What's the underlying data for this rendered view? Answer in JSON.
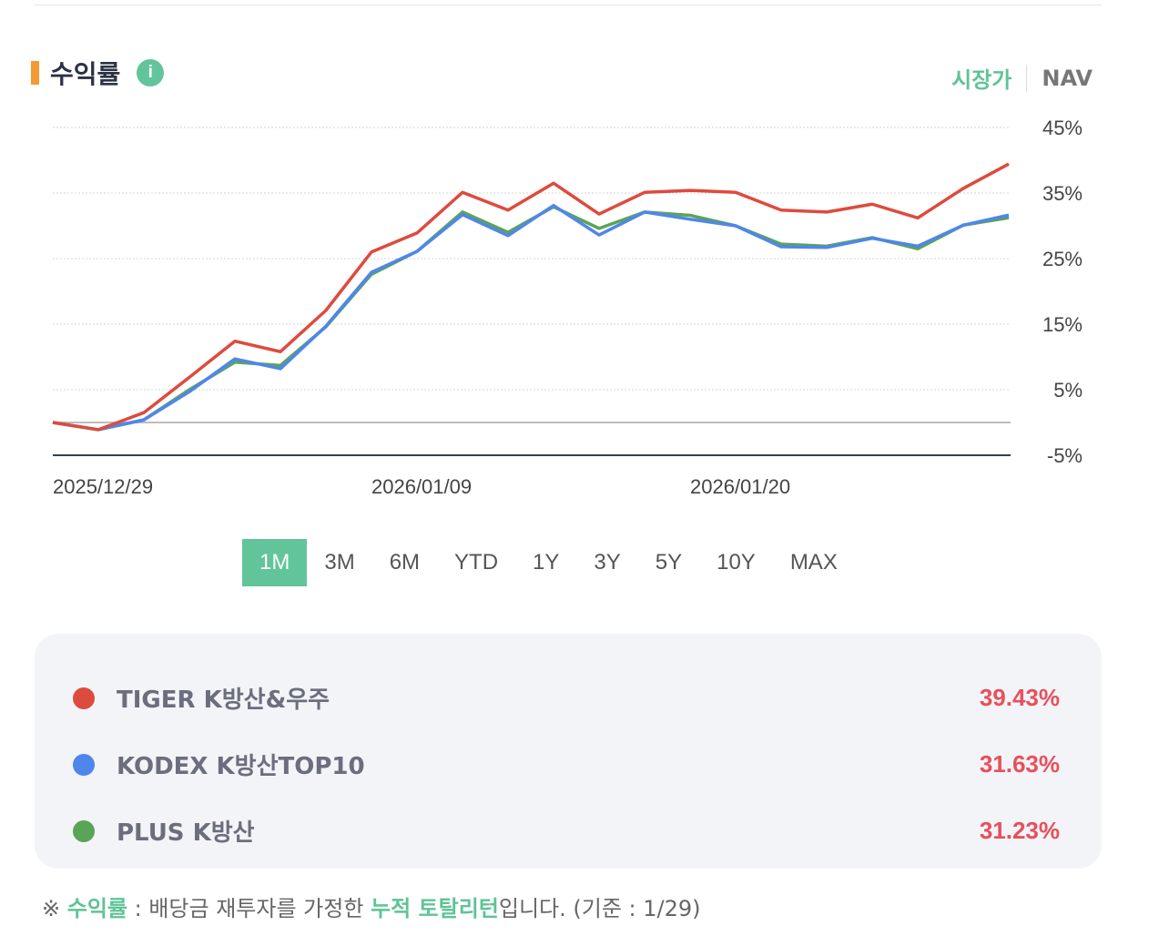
{
  "header": {
    "title": "수익률",
    "info_icon": "info-icon",
    "toggle_market": "시장가",
    "toggle_nav": "NAV"
  },
  "periods": [
    "1M",
    "3M",
    "6M",
    "YTD",
    "1Y",
    "3Y",
    "5Y",
    "10Y",
    "MAX"
  ],
  "active_period": "1M",
  "chart_data": {
    "type": "line",
    "title": "수익률",
    "xlabel": "",
    "ylabel": "",
    "ylim": [
      -5,
      45
    ],
    "yticks": [
      "45%",
      "35%",
      "25%",
      "15%",
      "5%",
      "-5%"
    ],
    "ytick_values": [
      45,
      35,
      25,
      15,
      5,
      -5
    ],
    "xtick_labels": [
      "2025/12/29",
      "2026/01/09",
      "2026/01/20"
    ],
    "xtick_index": [
      0,
      7,
      14
    ],
    "grid": true,
    "points": 22,
    "series": [
      {
        "name": "TIGER K방산&우주",
        "color": "#dd4b3e",
        "values": [
          0,
          -1.1,
          1.5,
          6.9,
          12.4,
          10.8,
          17.1,
          26.0,
          28.9,
          35.1,
          32.4,
          36.5,
          31.8,
          35.1,
          35.4,
          35.1,
          32.4,
          32.1,
          33.3,
          31.2,
          35.7,
          39.43
        ]
      },
      {
        "name": "KODEX K방산TOP10",
        "color": "#4f86ec",
        "values": [
          0,
          -1.1,
          0.4,
          4.7,
          9.7,
          8.2,
          14.7,
          22.9,
          26.1,
          31.7,
          28.5,
          33.1,
          28.6,
          32.1,
          31.0,
          30.0,
          26.8,
          26.7,
          28.1,
          26.9,
          30.1,
          31.63
        ]
      },
      {
        "name": "PLUS K방산",
        "color": "#5aa455",
        "values": [
          0,
          -1.1,
          0.4,
          5.0,
          9.2,
          8.7,
          14.6,
          22.6,
          26.1,
          32.1,
          29.0,
          32.9,
          29.6,
          32.1,
          31.6,
          30.0,
          27.2,
          26.9,
          28.2,
          26.5,
          30.1,
          31.23
        ]
      }
    ]
  },
  "legend": [
    {
      "name": "TIGER K방산&우주",
      "value": "39.43%",
      "color": "#dd4b3e"
    },
    {
      "name": "KODEX K방산TOP10",
      "value": "31.63%",
      "color": "#4f86ec"
    },
    {
      "name": "PLUS K방산",
      "value": "31.23%",
      "color": "#5aa455"
    }
  ],
  "note": {
    "prefix": "※ ",
    "term": "수익률",
    "mid": " : 배당금 재투자를 가정한 ",
    "term2": "누적 토탈리턴",
    "suffix": "입니다. (기준 : 1/29)"
  }
}
